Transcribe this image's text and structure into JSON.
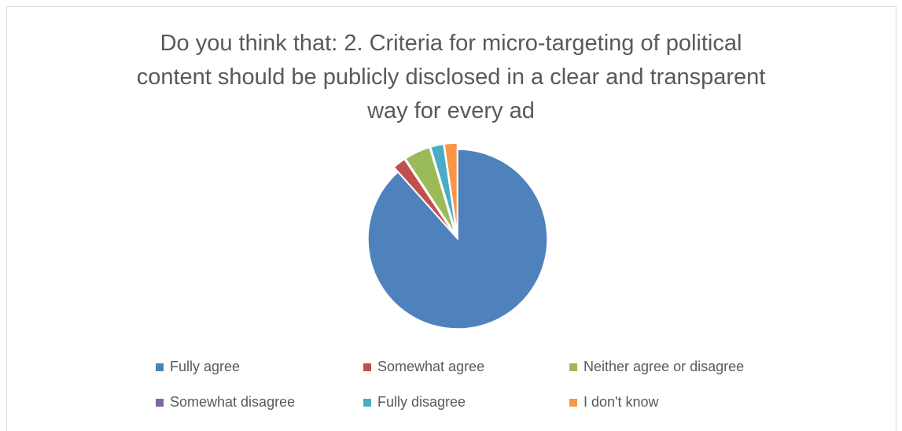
{
  "chart_data": {
    "type": "pie",
    "title_lines": [
      "Do you think that: 2. Criteria for micro-targeting of political",
      "content should be publicly disclosed in a clear and transparent",
      "way for every ad"
    ],
    "categories": [
      "Fully agree",
      "Somewhat agree",
      "Neither agree or disagree",
      "Somewhat disagree",
      "Fully disagree",
      "I don't know"
    ],
    "values": [
      88.4,
      2.3,
      4.7,
      0.0,
      2.3,
      2.3
    ],
    "colors": [
      "#4f81bd",
      "#c0504d",
      "#9bbb59",
      "#8064a2",
      "#4bacc6",
      "#f79646"
    ],
    "exploded": [
      false,
      true,
      true,
      true,
      true,
      true
    ],
    "legend_position": "bottom"
  }
}
